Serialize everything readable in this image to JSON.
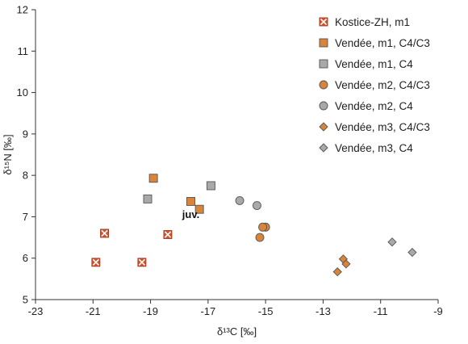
{
  "chart_data": {
    "type": "scatter",
    "xlabel": "δ¹³C [‰]",
    "ylabel": "δ¹⁵N [‰]",
    "xlim": [
      -23,
      -9
    ],
    "ylim": [
      5,
      12
    ],
    "xticks": [
      "-23",
      "-21",
      "-19",
      "-17",
      "-15",
      "-13",
      "-11",
      "-9"
    ],
    "yticks": [
      "5",
      "6",
      "7",
      "8",
      "9",
      "10",
      "11",
      "12"
    ],
    "xtick_values": [
      -23,
      -21,
      -19,
      -17,
      -15,
      -13,
      -11,
      -9
    ],
    "ytick_values": [
      5,
      6,
      7,
      8,
      9,
      10,
      11,
      12
    ],
    "grid": false,
    "legend_position": "top-right",
    "annotations": [
      {
        "text": "juv.",
        "x": -17.9,
        "y": 7.05
      }
    ],
    "series": [
      {
        "name": "Kostice-ZH, m1",
        "marker": "x-square",
        "color": "#d2542f",
        "x": [
          -20.6,
          -20.9,
          -19.3,
          -18.4
        ],
        "y": [
          6.6,
          5.9,
          5.9,
          6.57
        ]
      },
      {
        "name": "Vendée, m1, C4/C3",
        "marker": "square",
        "color": "#d8843b",
        "x": [
          -18.9,
          -17.6,
          -17.3
        ],
        "y": [
          7.93,
          7.37,
          7.18
        ]
      },
      {
        "name": "Vendée, m1, C4",
        "marker": "square",
        "color": "#a9a9a9",
        "x": [
          -19.1,
          -16.9
        ],
        "y": [
          7.43,
          7.75
        ]
      },
      {
        "name": "Vendée, m2, C4/C3",
        "marker": "circle",
        "color": "#d8843b",
        "x": [
          -15.0,
          -15.2,
          -15.1
        ],
        "y": [
          6.75,
          6.5,
          6.75
        ]
      },
      {
        "name": "Vendée, m2, C4",
        "marker": "circle",
        "color": "#a9a9a9",
        "x": [
          -15.9,
          -15.3
        ],
        "y": [
          7.39,
          7.27
        ]
      },
      {
        "name": "Vendée, m3, C4/C3",
        "marker": "diamond",
        "color": "#d8843b",
        "x": [
          -12.5,
          -12.3,
          -12.2
        ],
        "y": [
          5.67,
          5.98,
          5.86
        ]
      },
      {
        "name": "Vendée, m3, C4",
        "marker": "diamond",
        "color": "#a9a9a9",
        "x": [
          -10.6,
          -9.9
        ],
        "y": [
          6.39,
          6.14
        ]
      }
    ]
  }
}
